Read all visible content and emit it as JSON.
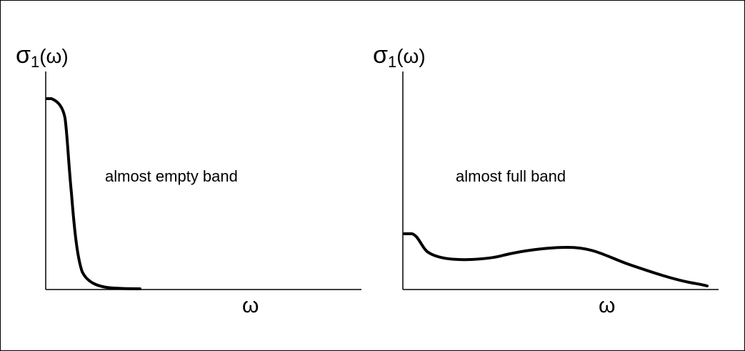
{
  "panels": [
    {
      "y_label": {
        "symbol": "σ",
        "subscript": "1",
        "arg": "(ω)"
      },
      "x_label": "ω",
      "annotation": "almost empty band"
    },
    {
      "y_label": {
        "symbol": "σ",
        "subscript": "1",
        "arg": "(ω)"
      },
      "x_label": "ω",
      "annotation": "almost full band"
    }
  ]
}
